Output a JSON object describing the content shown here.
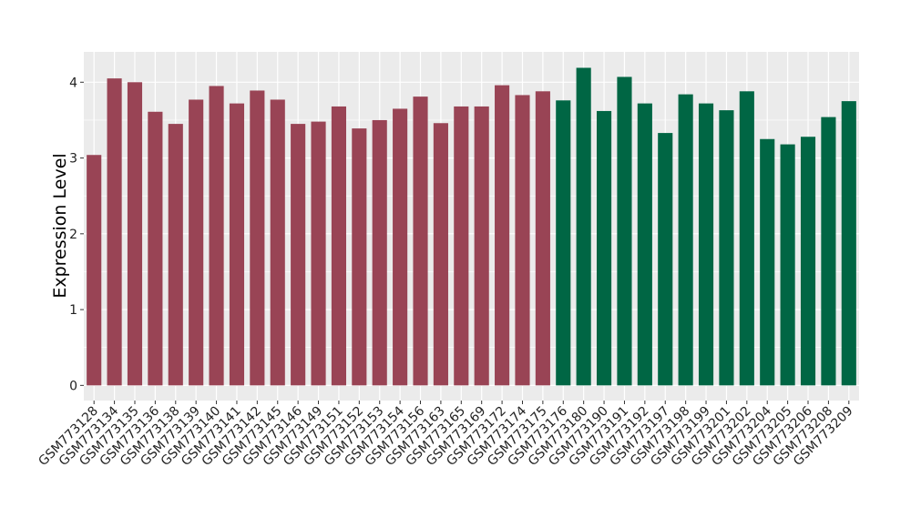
{
  "chart_data": {
    "type": "bar",
    "ylabel": "Expression Level",
    "xlabel": "",
    "ylim": [
      -0.2,
      4.4
    ],
    "yticks": [
      0,
      1,
      2,
      3,
      4
    ],
    "grid": true,
    "categories": [
      "GSM773128",
      "GSM773134",
      "GSM773135",
      "GSM773136",
      "GSM773138",
      "GSM773139",
      "GSM773140",
      "GSM773141",
      "GSM773142",
      "GSM773145",
      "GSM773146",
      "GSM773149",
      "GSM773151",
      "GSM773152",
      "GSM773153",
      "GSM773154",
      "GSM773156",
      "GSM773163",
      "GSM773165",
      "GSM773169",
      "GSM773172",
      "GSM773174",
      "GSM773175",
      "GSM773176",
      "GSM773180",
      "GSM773190",
      "GSM773191",
      "GSM773192",
      "GSM773197",
      "GSM773198",
      "GSM773199",
      "GSM773201",
      "GSM773202",
      "GSM773204",
      "GSM773205",
      "GSM773206",
      "GSM773208",
      "GSM773209"
    ],
    "values": [
      3.04,
      4.05,
      4.0,
      3.61,
      3.45,
      3.77,
      3.95,
      3.72,
      3.89,
      3.77,
      3.45,
      3.48,
      3.68,
      3.39,
      3.5,
      3.65,
      3.81,
      3.46,
      3.68,
      3.68,
      3.96,
      3.83,
      3.88,
      3.76,
      4.19,
      3.62,
      4.07,
      3.72,
      3.33,
      3.84,
      3.72,
      3.63,
      3.88,
      3.25,
      3.18,
      3.28,
      3.54,
      3.75
    ],
    "groups": [
      "g1",
      "g1",
      "g1",
      "g1",
      "g1",
      "g1",
      "g1",
      "g1",
      "g1",
      "g1",
      "g1",
      "g1",
      "g1",
      "g1",
      "g1",
      "g1",
      "g1",
      "g1",
      "g1",
      "g1",
      "g1",
      "g1",
      "g1",
      "g2",
      "g2",
      "g2",
      "g2",
      "g2",
      "g2",
      "g2",
      "g2",
      "g2",
      "g2",
      "g2",
      "g2",
      "g2",
      "g2",
      "g2"
    ],
    "colors": {
      "g1": "#994455",
      "g2": "#006644"
    },
    "panel_background": "#ebebeb",
    "gridline_color": "#ffffff"
  }
}
